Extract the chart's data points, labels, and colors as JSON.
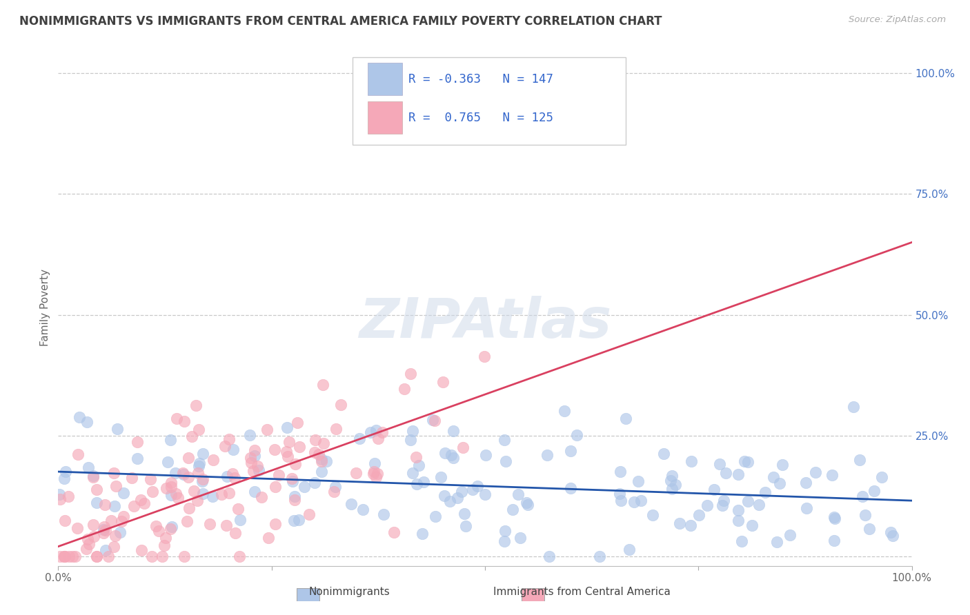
{
  "title": "NONIMMIGRANTS VS IMMIGRANTS FROM CENTRAL AMERICA FAMILY POVERTY CORRELATION CHART",
  "source": "Source: ZipAtlas.com",
  "ylabel": "Family Poverty",
  "xlim": [
    0.0,
    1.0
  ],
  "ylim": [
    -0.02,
    1.05
  ],
  "blue_R": -0.363,
  "blue_N": 147,
  "pink_R": 0.765,
  "pink_N": 125,
  "blue_color": "#aec6e8",
  "pink_color": "#f5a8b8",
  "blue_line_color": "#2255aa",
  "pink_line_color": "#d94060",
  "legend_text_color": "#3366cc",
  "watermark": "ZIPAtlas",
  "background_color": "#ffffff",
  "grid_color": "#c8c8c8",
  "title_color": "#404040",
  "title_fontsize": 12,
  "blue_intercept": 0.175,
  "blue_slope": -0.06,
  "pink_intercept": 0.02,
  "pink_slope": 0.63
}
